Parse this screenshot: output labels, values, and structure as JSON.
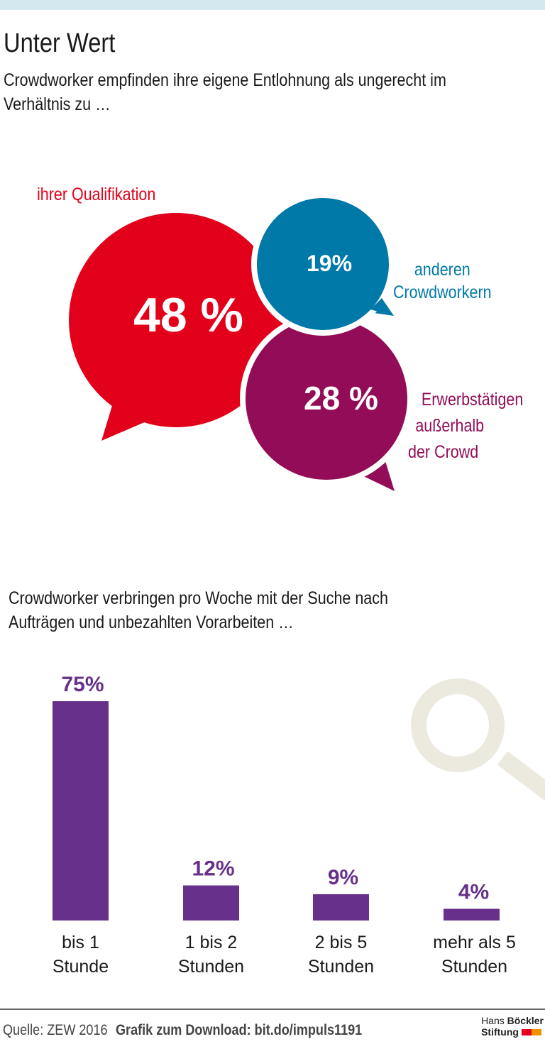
{
  "title": "Unter Wert",
  "subtitle1": "Crowdworker empfinden ihre eigene Entlohnung als ungerecht im Verhältnis zu …",
  "subtitle1_lines": [
    "Crowdworker empfinden ihre eigene Entlohnung als ungerecht im",
    "Verhältnis zu …"
  ],
  "subtitle2_lines": [
    "Crowdworker verbringen pro Woche mit der Suche nach",
    "Aufträgen und unbezahlten Vorarbeiten …"
  ],
  "chart_data": [
    {
      "type": "bubble",
      "series": [
        {
          "name": "ihrer Qualifikation",
          "label_lines": [
            "ihrer Qualifikation"
          ],
          "value": 48,
          "value_label": "48 %",
          "color": "#e2001a"
        },
        {
          "name": "anderen Crowdworkern",
          "label_lines": [
            "anderen",
            "Crowdworkern"
          ],
          "value": 19,
          "value_label": "19%",
          "color": "#0079a8"
        },
        {
          "name": "Erwerbstätigen außerhalb der Crowd",
          "label_lines": [
            "Erwerbstätigen",
            "außerhalb",
            "der Crowd"
          ],
          "value": 28,
          "value_label": "28 %",
          "color": "#930c57"
        }
      ]
    },
    {
      "type": "bar",
      "categories": [
        [
          "bis 1",
          "Stunde"
        ],
        [
          "1 bis 2",
          "Stunden"
        ],
        [
          "2 bis 5",
          "Stunden"
        ],
        [
          "mehr als 5",
          "Stunden"
        ]
      ],
      "values": [
        75,
        12,
        9,
        4
      ],
      "value_labels": [
        "75%",
        "12%",
        "9%",
        "4%"
      ],
      "ylim": [
        0,
        75
      ],
      "color": "#67308a"
    }
  ],
  "icon": "magnifier-icon",
  "icon_color": "#ece9df",
  "footer": {
    "source": "Quelle: ZEW 2016",
    "download": "Grafik zum Download: bit.do/impuls1191",
    "logo_line1_a": "Hans",
    "logo_line1_b": "Böckler",
    "logo_line2": "Stiftung"
  }
}
